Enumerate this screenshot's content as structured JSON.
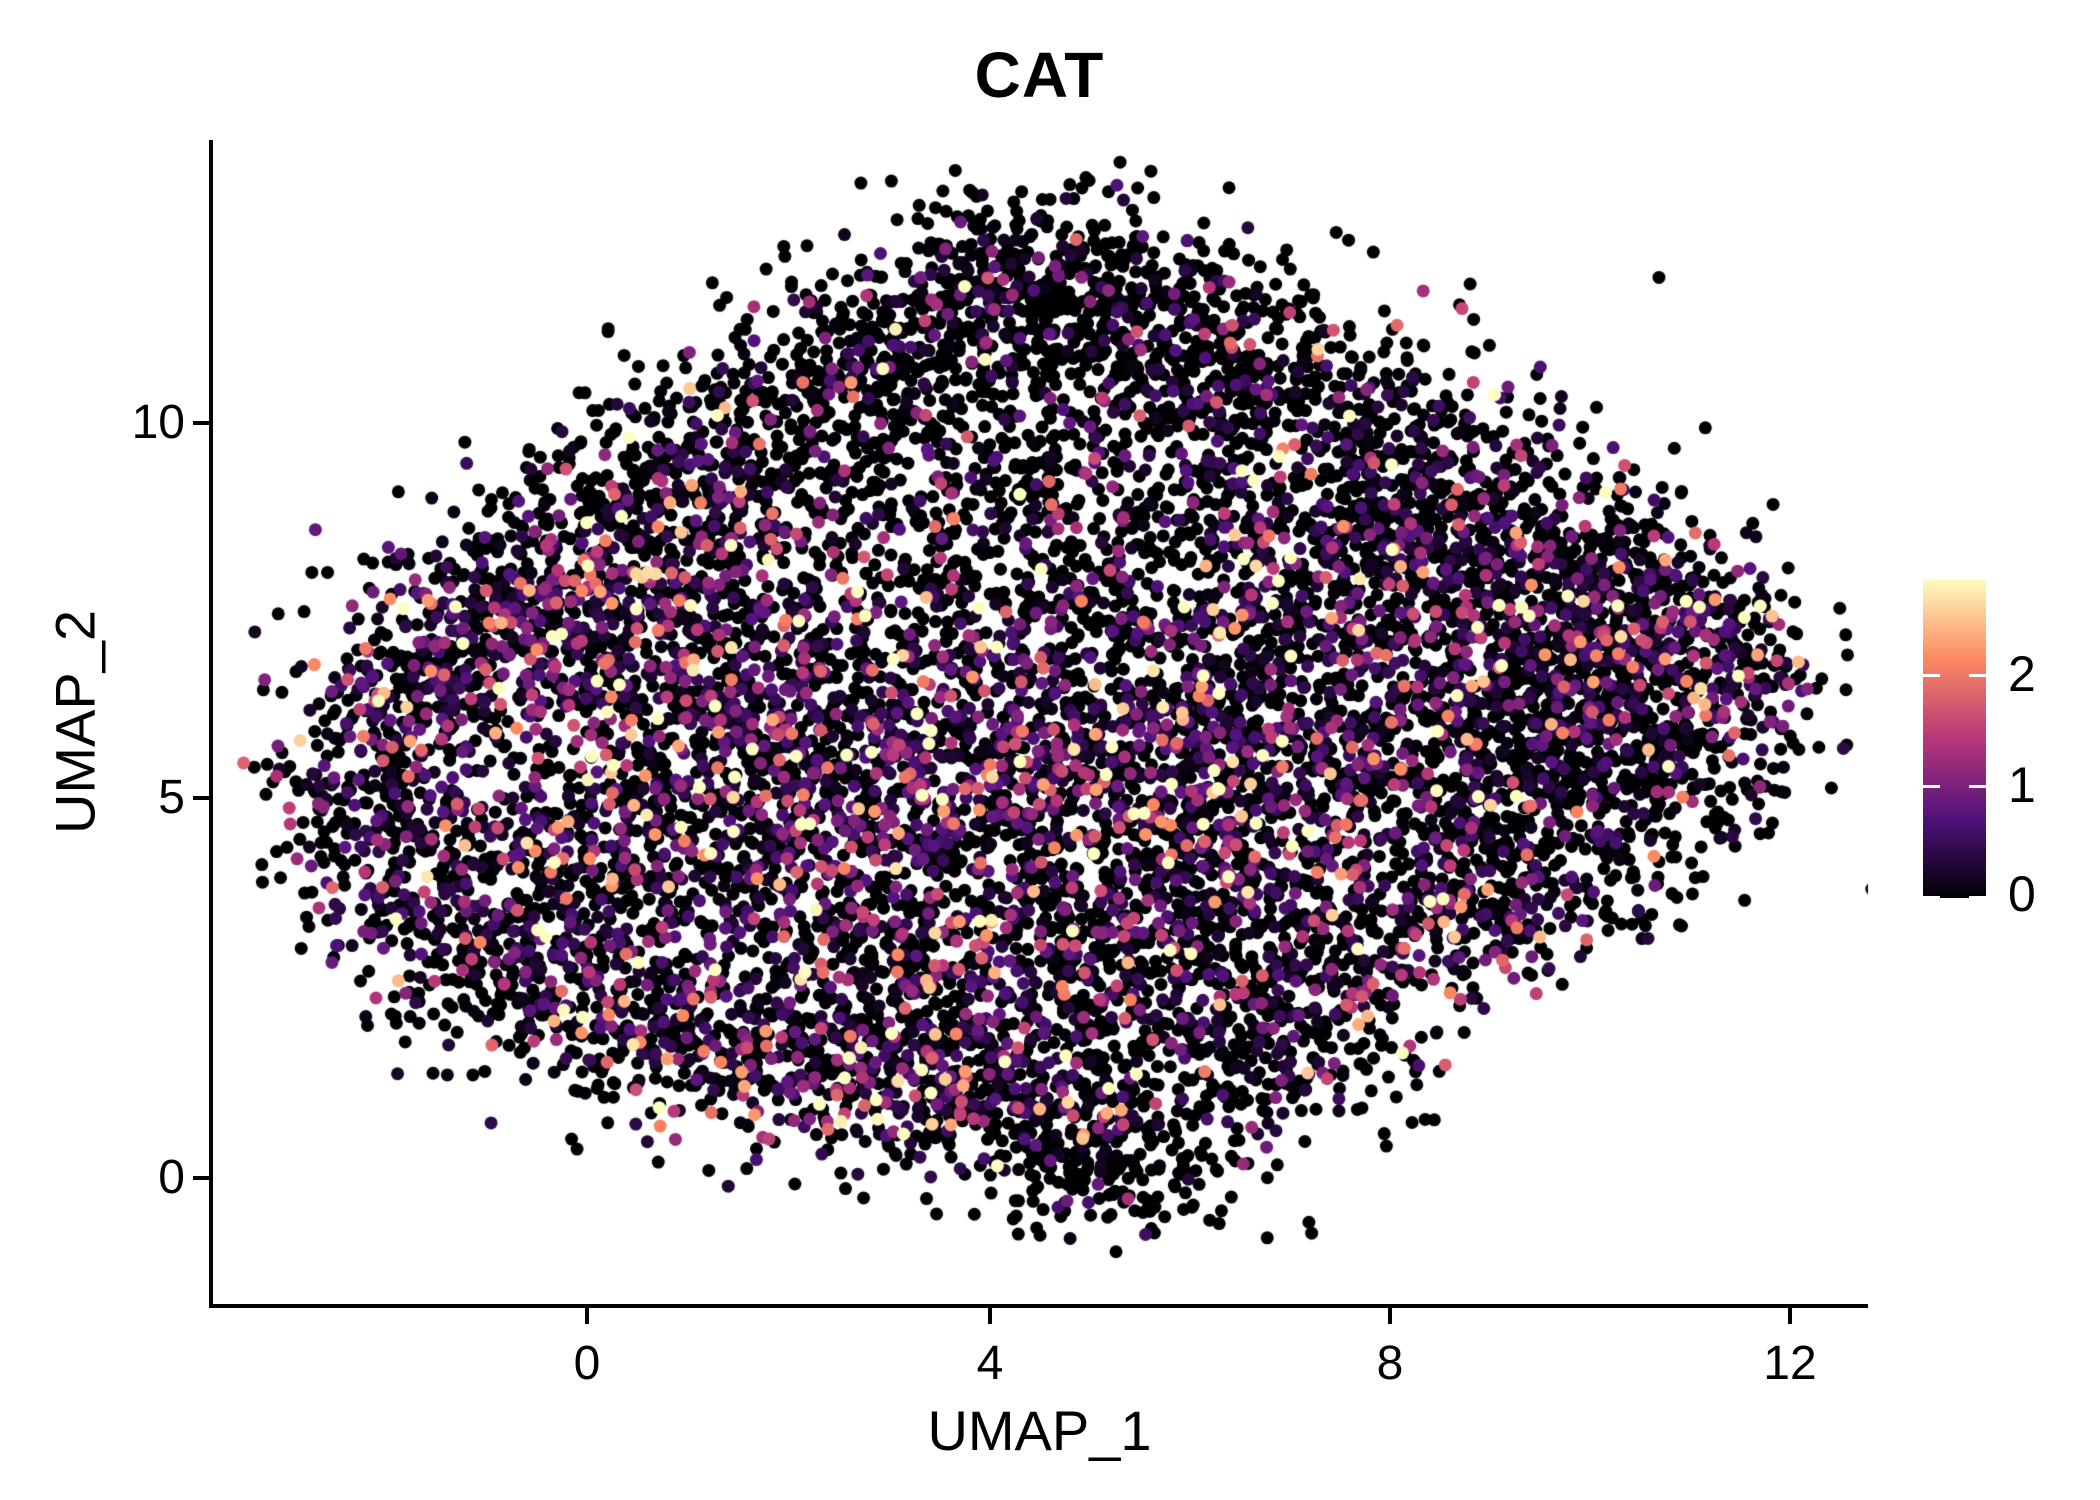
{
  "figure": {
    "title": "CAT",
    "background": "#ffffff",
    "axis_color": "#000000",
    "text_color": "#000000"
  },
  "chart_data": {
    "type": "scatter",
    "title": "CAT",
    "xlabel": "UMAP_1",
    "ylabel": "UMAP_2",
    "xticks": [
      "0",
      "4",
      "8",
      "12"
    ],
    "xtick_values": [
      0,
      4,
      8,
      12
    ],
    "yticks": [
      "10",
      "5",
      "0"
    ],
    "ytick_values": [
      10,
      5,
      0
    ],
    "xlim": [
      -3.75,
      12.77
    ],
    "ylim": [
      -1.69,
      13.73
    ],
    "grid": false,
    "legend_position": "right",
    "point_radius_px": 6.5,
    "colorbar": {
      "ticks": [
        "2",
        "1",
        "0"
      ],
      "tick_values": [
        2,
        1,
        0
      ],
      "vmin": 0,
      "vmax": 2.9,
      "colormap": "magma",
      "colormap_stops": [
        {
          "t": 0.0,
          "color": "#000004"
        },
        {
          "t": 0.25,
          "color": "#51127c"
        },
        {
          "t": 0.5,
          "color": "#b73779"
        },
        {
          "t": 0.75,
          "color": "#fc8961"
        },
        {
          "t": 1.0,
          "color": "#fcfdbf"
        }
      ]
    },
    "clusters_note": "Each cluster: [center_x, center_y, sd_x, sd_y, n_points, fraction_zero_expression, mean_positive_expression]",
    "clusters": [
      [
        4.5,
        12.0,
        0.95,
        0.6,
        300,
        0.82,
        0.6
      ],
      [
        3.4,
        11.2,
        0.85,
        0.55,
        230,
        0.8,
        0.6
      ],
      [
        5.6,
        11.4,
        0.85,
        0.55,
        230,
        0.8,
        0.6
      ],
      [
        2.3,
        10.4,
        0.8,
        0.55,
        210,
        0.78,
        0.65
      ],
      [
        6.7,
        10.6,
        0.9,
        0.6,
        230,
        0.75,
        0.7
      ],
      [
        1.3,
        9.6,
        0.8,
        0.55,
        210,
        0.75,
        0.7
      ],
      [
        0.4,
        8.8,
        0.75,
        0.55,
        190,
        0.72,
        0.8
      ],
      [
        7.8,
        9.7,
        0.95,
        0.65,
        240,
        0.72,
        0.7
      ],
      [
        8.9,
        8.8,
        0.95,
        0.65,
        250,
        0.68,
        0.75
      ],
      [
        -0.8,
        7.6,
        0.8,
        0.6,
        280,
        0.45,
        0.85
      ],
      [
        -1.7,
        6.5,
        0.6,
        0.6,
        210,
        0.5,
        0.85
      ],
      [
        0.3,
        7.0,
        0.9,
        0.7,
        280,
        0.48,
        0.9
      ],
      [
        -2.2,
        5.1,
        0.55,
        0.85,
        210,
        0.55,
        0.8
      ],
      [
        -1.5,
        3.9,
        0.6,
        0.8,
        210,
        0.55,
        0.8
      ],
      [
        -0.7,
        2.9,
        0.7,
        0.7,
        200,
        0.6,
        0.75
      ],
      [
        0.4,
        2.2,
        0.8,
        0.6,
        200,
        0.6,
        0.75
      ],
      [
        1.6,
        1.7,
        0.9,
        0.6,
        220,
        0.58,
        0.8
      ],
      [
        2.9,
        1.3,
        0.9,
        0.55,
        230,
        0.55,
        0.85
      ],
      [
        4.1,
        1.1,
        0.8,
        0.5,
        200,
        0.6,
        0.85
      ],
      [
        5.3,
        0.1,
        0.7,
        0.5,
        180,
        0.9,
        0.45
      ],
      [
        5.0,
        0.9,
        0.6,
        0.45,
        120,
        0.8,
        0.55
      ],
      [
        6.3,
        2.2,
        0.9,
        0.6,
        200,
        0.65,
        0.7
      ],
      [
        7.6,
        3.0,
        0.95,
        0.6,
        230,
        0.6,
        0.8
      ],
      [
        8.8,
        3.8,
        0.95,
        0.6,
        230,
        0.65,
        0.75
      ],
      [
        9.9,
        4.8,
        0.85,
        0.85,
        230,
        0.75,
        0.6
      ],
      [
        10.8,
        5.9,
        0.7,
        0.8,
        200,
        0.7,
        0.7
      ],
      [
        11.4,
        6.7,
        0.5,
        0.65,
        130,
        0.5,
        1.1
      ],
      [
        10.4,
        7.6,
        0.7,
        0.6,
        190,
        0.65,
        0.75
      ],
      [
        8.2,
        6.9,
        1.15,
        0.95,
        430,
        0.55,
        0.8
      ],
      [
        9.4,
        7.8,
        0.85,
        0.7,
        270,
        0.6,
        0.75
      ],
      [
        7.0,
        8.1,
        1.05,
        0.8,
        310,
        0.6,
        0.75
      ],
      [
        9.6,
        6.0,
        0.8,
        0.7,
        230,
        0.65,
        0.7
      ],
      [
        4.6,
        5.6,
        1.4,
        1.0,
        430,
        0.45,
        0.85
      ],
      [
        3.0,
        5.1,
        1.1,
        0.9,
        330,
        0.5,
        0.85
      ],
      [
        6.0,
        6.2,
        1.1,
        0.9,
        330,
        0.5,
        0.85
      ],
      [
        5.6,
        4.5,
        1.0,
        0.8,
        270,
        0.55,
        0.8
      ],
      [
        1.7,
        4.6,
        0.95,
        0.9,
        270,
        0.5,
        0.85
      ],
      [
        2.3,
        6.3,
        0.95,
        0.8,
        270,
        0.48,
        0.9
      ],
      [
        3.7,
        8.7,
        1.2,
        0.9,
        250,
        0.7,
        0.7
      ],
      [
        5.2,
        9.6,
        1.0,
        0.8,
        230,
        0.75,
        0.65
      ],
      [
        1.6,
        8.0,
        0.9,
        0.7,
        230,
        0.6,
        0.8
      ],
      [
        4.6,
        7.3,
        1.0,
        0.8,
        250,
        0.6,
        0.75
      ],
      [
        6.8,
        4.9,
        0.9,
        0.7,
        230,
        0.6,
        0.75
      ],
      [
        2.6,
        3.4,
        0.9,
        0.7,
        230,
        0.6,
        0.75
      ],
      [
        4.6,
        2.9,
        1.0,
        0.7,
        250,
        0.58,
        0.8
      ],
      [
        5.9,
        3.5,
        0.8,
        0.6,
        190,
        0.6,
        0.75
      ],
      [
        0.6,
        5.8,
        0.8,
        0.8,
        230,
        0.5,
        0.85
      ],
      [
        0.0,
        4.2,
        0.7,
        0.7,
        190,
        0.55,
        0.8
      ],
      [
        8.6,
        5.2,
        0.8,
        0.6,
        190,
        0.7,
        0.65
      ],
      [
        10.1,
        6.9,
        0.6,
        0.5,
        150,
        0.6,
        0.8
      ],
      [
        3.3,
        2.3,
        0.8,
        0.55,
        170,
        0.55,
        0.85
      ],
      [
        6.9,
        1.5,
        0.7,
        0.5,
        150,
        0.72,
        0.6
      ]
    ]
  }
}
